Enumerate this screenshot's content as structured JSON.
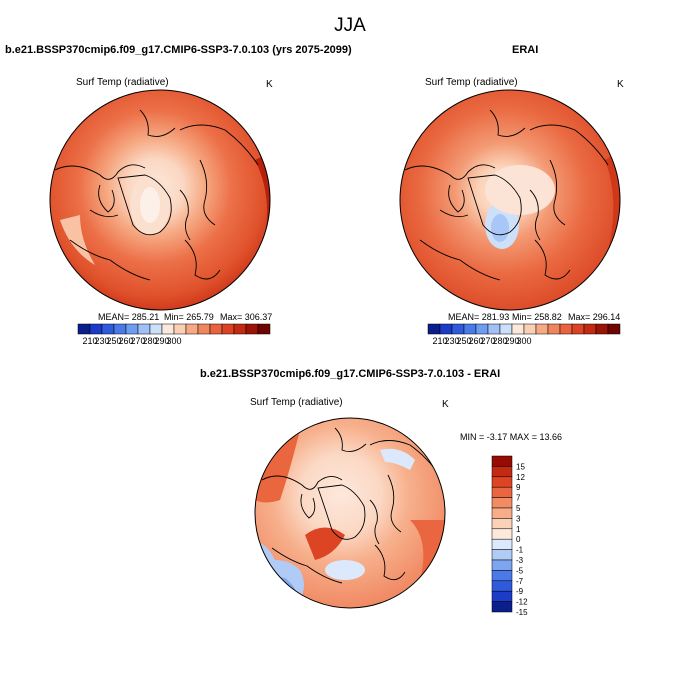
{
  "figure": {
    "season": "JJA"
  },
  "colors": {
    "abs_palette": [
      "#0a1e8c",
      "#1a3cc8",
      "#2e5adc",
      "#4a7ae8",
      "#6e9cf0",
      "#a0c0f6",
      "#cde0fa",
      "#fde8dc",
      "#fbcfb4",
      "#f6aa84",
      "#f08660",
      "#e8633e",
      "#dc4324",
      "#c22a14",
      "#9c1408",
      "#700400"
    ],
    "diff_palette": [
      "#0a1e8c",
      "#1a3cc8",
      "#2e5adc",
      "#4a7ae8",
      "#7ea6f0",
      "#b0ccf6",
      "#dce8fb",
      "#fde8dc",
      "#fbd2b8",
      "#f7ae88",
      "#f18c64",
      "#e96640",
      "#dc4424",
      "#c22a14",
      "#960c04"
    ]
  },
  "panels": {
    "model": {
      "title": "b.e21.BSSP370cmip6.f09_g17.CMIP6-SSP3-7.0.103 (yrs 2075-2099)",
      "variable": "Surf Temp (radiative)",
      "units": "K",
      "mean_text": "MEAN= 285.21",
      "min_text": "Min= 265.79",
      "max_text": "Max= 306.37"
    },
    "obs": {
      "title": "ERAI",
      "variable": "Surf Temp (radiative)",
      "units": "K",
      "mean_text": "MEAN= 281.93",
      "min_text": "Min= 258.82",
      "max_text": "Max= 296.14"
    },
    "diff": {
      "title": "b.e21.BSSP370cmip6.f09_g17.CMIP6-SSP3-7.0.103 - ERAI",
      "variable": "Surf Temp (radiative)",
      "units": "K",
      "minmax_text": "MIN =  -3.17 MAX =  13.66"
    }
  },
  "chart_data": [
    {
      "type": "heatmap",
      "title": "b.e21.BSSP370cmip6.f09_g17.CMIP6-SSP3-7.0.103 (yrs 2075-2099)",
      "variable": "Surf Temp (radiative)",
      "units": "K",
      "projection": "north polar stereographic",
      "mean": 285.21,
      "min": 265.79,
      "max": 306.37,
      "colorbar_ticks": [
        "210",
        "230",
        "250",
        "260",
        "270",
        "280",
        "290",
        "300"
      ]
    },
    {
      "type": "heatmap",
      "title": "ERAI",
      "variable": "Surf Temp (radiative)",
      "units": "K",
      "projection": "north polar stereographic",
      "mean": 281.93,
      "min": 258.82,
      "max": 296.14,
      "colorbar_ticks": [
        "210",
        "230",
        "250",
        "260",
        "270",
        "280",
        "290",
        "300"
      ]
    },
    {
      "type": "heatmap",
      "title": "b.e21.BSSP370cmip6.f09_g17.CMIP6-SSP3-7.0.103 - ERAI",
      "variable": "Surf Temp (radiative)",
      "units": "K",
      "projection": "north polar stereographic",
      "min": -3.17,
      "max": 13.66,
      "colorbar_ticks": [
        "15",
        "12",
        "9",
        "7",
        "5",
        "3",
        "1",
        "0",
        "-1",
        "-3",
        "-5",
        "-7",
        "-9",
        "-12",
        "-15"
      ]
    }
  ]
}
